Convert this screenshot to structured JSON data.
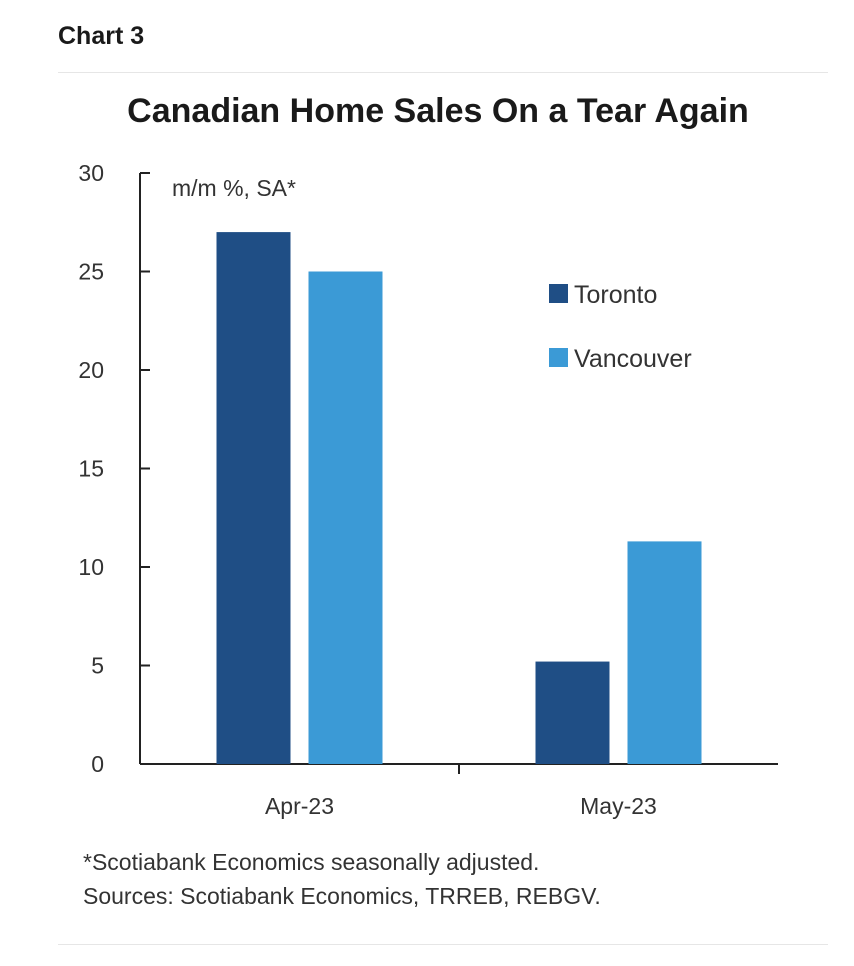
{
  "header": {
    "chart_label": "Chart 3"
  },
  "colors": {
    "toronto": "#1f4e85",
    "vancouver": "#3b9ad6",
    "axis": "#222222",
    "text": "#333333"
  },
  "chart_data": {
    "type": "bar",
    "title": "Canadian Home Sales On a Tear Again",
    "unit_label": "m/m %, SA*",
    "categories": [
      "Apr-23",
      "May-23"
    ],
    "series": [
      {
        "name": "Toronto",
        "values": [
          27.0,
          5.2
        ]
      },
      {
        "name": "Vancouver",
        "values": [
          25.0,
          11.3
        ]
      }
    ],
    "ylim": [
      0,
      30
    ],
    "yticks": [
      "0",
      "5",
      "10",
      "15",
      "20",
      "25",
      "30"
    ],
    "legend_placement": "right",
    "grid": false
  },
  "footnote": {
    "line1": "*Scotiabank Economics seasonally adjusted.",
    "line2": "Sources: Scotiabank Economics, TRREB, REBGV."
  }
}
